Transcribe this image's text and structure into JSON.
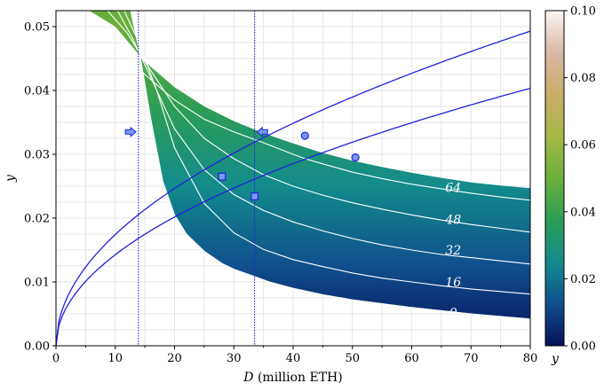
{
  "chart_data": {
    "type": "line",
    "xlabel_var": "D",
    "xlabel_unit": " (million ETH)",
    "ylabel": "y",
    "xlim": [
      0,
      80
    ],
    "ylim": [
      0,
      0.0525
    ],
    "xticks": [
      "0",
      "10",
      "20",
      "30",
      "40",
      "50",
      "60",
      "70",
      "80"
    ],
    "yticks": [
      "0.00",
      "0.01",
      "0.02",
      "0.03",
      "0.04",
      "0.05"
    ],
    "grid": true,
    "band": {
      "lower": [
        [
          12.6,
          0.0525
        ],
        [
          14,
          0.0465
        ],
        [
          16,
          0.0355
        ],
        [
          18,
          0.0258
        ],
        [
          20,
          0.0205
        ],
        [
          22,
          0.0175
        ],
        [
          25,
          0.0148
        ],
        [
          28,
          0.0129
        ],
        [
          30,
          0.012
        ],
        [
          33,
          0.011
        ],
        [
          36,
          0.01
        ],
        [
          40,
          0.009
        ],
        [
          45,
          0.008
        ],
        [
          50,
          0.0072
        ],
        [
          55,
          0.0066
        ],
        [
          60,
          0.006
        ],
        [
          65,
          0.0055
        ],
        [
          70,
          0.005
        ],
        [
          75,
          0.0046
        ],
        [
          80,
          0.0042
        ]
      ],
      "upper": [
        [
          5.6,
          0.0525
        ],
        [
          10,
          0.05
        ],
        [
          15,
          0.0445
        ],
        [
          20,
          0.0405
        ],
        [
          25,
          0.0375
        ],
        [
          30,
          0.0352
        ],
        [
          35,
          0.0333
        ],
        [
          40,
          0.0317
        ],
        [
          45,
          0.0302
        ],
        [
          50,
          0.029
        ],
        [
          55,
          0.028
        ],
        [
          60,
          0.0271
        ],
        [
          65,
          0.0263
        ],
        [
          70,
          0.0256
        ],
        [
          75,
          0.0251
        ],
        [
          80,
          0.0247
        ]
      ]
    },
    "band_fill_note": "colored by y value using colorbar",
    "contours": [
      {
        "label": "64",
        "points": [
          [
            5.3,
            0.0525
          ],
          [
            10,
            0.047
          ],
          [
            15,
            0.0425
          ],
          [
            20,
            0.0385
          ],
          [
            25,
            0.0355
          ],
          [
            30,
            0.0335
          ],
          [
            35,
            0.0318
          ],
          [
            40,
            0.03
          ],
          [
            42,
            0.0293
          ],
          [
            45,
            0.0285
          ],
          [
            50,
            0.0272
          ],
          [
            55,
            0.0262
          ],
          [
            60,
            0.0253
          ],
          [
            65,
            0.0246
          ],
          [
            70,
            0.0239
          ],
          [
            75,
            0.0233
          ],
          [
            80,
            0.0228
          ]
        ],
        "label_at": [
          67,
          0.0248
        ]
      },
      {
        "label": "48",
        "points": [
          [
            8.7,
            0.0525
          ],
          [
            12,
            0.049
          ],
          [
            15,
            0.0445
          ],
          [
            20,
            0.0375
          ],
          [
            25,
            0.0325
          ],
          [
            30,
            0.0293
          ],
          [
            35,
            0.0268
          ],
          [
            40,
            0.025
          ],
          [
            45,
            0.0236
          ],
          [
            50,
            0.0224
          ],
          [
            55,
            0.0214
          ],
          [
            60,
            0.0205
          ],
          [
            65,
            0.0197
          ],
          [
            70,
            0.019
          ],
          [
            75,
            0.0184
          ],
          [
            80,
            0.0178
          ]
        ],
        "label_at": [
          67,
          0.0198
        ]
      },
      {
        "label": "32",
        "points": [
          [
            10.4,
            0.0525
          ],
          [
            13,
            0.048
          ],
          [
            16,
            0.042
          ],
          [
            20,
            0.034
          ],
          [
            25,
            0.0276
          ],
          [
            30,
            0.0237
          ],
          [
            35,
            0.0212
          ],
          [
            40,
            0.0194
          ],
          [
            45,
            0.018
          ],
          [
            50,
            0.0168
          ],
          [
            55,
            0.0158
          ],
          [
            60,
            0.015
          ],
          [
            65,
            0.0143
          ],
          [
            70,
            0.0138
          ],
          [
            75,
            0.0133
          ],
          [
            80,
            0.0128
          ]
        ],
        "label_at": [
          67,
          0.015
        ]
      },
      {
        "label": "16",
        "points": [
          [
            11.5,
            0.0525
          ],
          [
            14,
            0.0475
          ],
          [
            17,
            0.04
          ],
          [
            20,
            0.031
          ],
          [
            25,
            0.0223
          ],
          [
            30,
            0.0177
          ],
          [
            35,
            0.0151
          ],
          [
            40,
            0.0135
          ],
          [
            45,
            0.0124
          ],
          [
            50,
            0.0114
          ],
          [
            55,
            0.0106
          ],
          [
            60,
            0.01
          ],
          [
            65,
            0.0094
          ],
          [
            70,
            0.0089
          ],
          [
            75,
            0.0085
          ],
          [
            80,
            0.0081
          ]
        ],
        "label_at": [
          67,
          0.01
        ]
      },
      {
        "label": "0",
        "points": [
          [
            12.6,
            0.0525
          ],
          [
            14,
            0.0465
          ],
          [
            16,
            0.0355
          ],
          [
            18,
            0.0258
          ],
          [
            20,
            0.0205
          ],
          [
            22,
            0.0175
          ],
          [
            25,
            0.0148
          ],
          [
            28,
            0.0129
          ],
          [
            30,
            0.012
          ],
          [
            33,
            0.011
          ],
          [
            36,
            0.01
          ],
          [
            40,
            0.009
          ],
          [
            45,
            0.008
          ],
          [
            50,
            0.0072
          ],
          [
            55,
            0.0066
          ],
          [
            60,
            0.006
          ],
          [
            65,
            0.0055
          ],
          [
            70,
            0.005
          ],
          [
            75,
            0.0046
          ],
          [
            80,
            0.0042
          ]
        ],
        "label_at": [
          67,
          0.0052
        ]
      }
    ],
    "sqrt_curves": [
      {
        "coef": 0.00551
      },
      {
        "coef": 0.00451
      }
    ],
    "markers": [
      {
        "x": 42.0,
        "y": 0.0329,
        "shape": "circle"
      },
      {
        "x": 50.5,
        "y": 0.0295,
        "shape": "circle"
      },
      {
        "x": 28.0,
        "y": 0.0265,
        "shape": "square"
      },
      {
        "x": 33.5,
        "y": 0.0234,
        "shape": "square"
      }
    ],
    "vlines": [
      13.9,
      33.5
    ],
    "arrows": [
      {
        "x": 12.6,
        "y": 0.0335,
        "direction": "right"
      },
      {
        "x": 34.8,
        "y": 0.0335,
        "direction": "left"
      }
    ],
    "colorbar": {
      "label": "y",
      "range": [
        0,
        0.1
      ],
      "ticks": [
        "0.00",
        "0.02",
        "0.04",
        "0.06",
        "0.08",
        "0.10"
      ],
      "colors": [
        "#07115a",
        "#104f8d",
        "#138b8c",
        "#2e9e55",
        "#6aaf3c",
        "#a6b848",
        "#c9ad68",
        "#d9b8a6",
        "#fbf6f4"
      ]
    },
    "colors": {
      "curve": "#2222dd",
      "contour": "#ffffff",
      "marker_fill": "#7799ee",
      "grid": "#dddddd"
    }
  }
}
